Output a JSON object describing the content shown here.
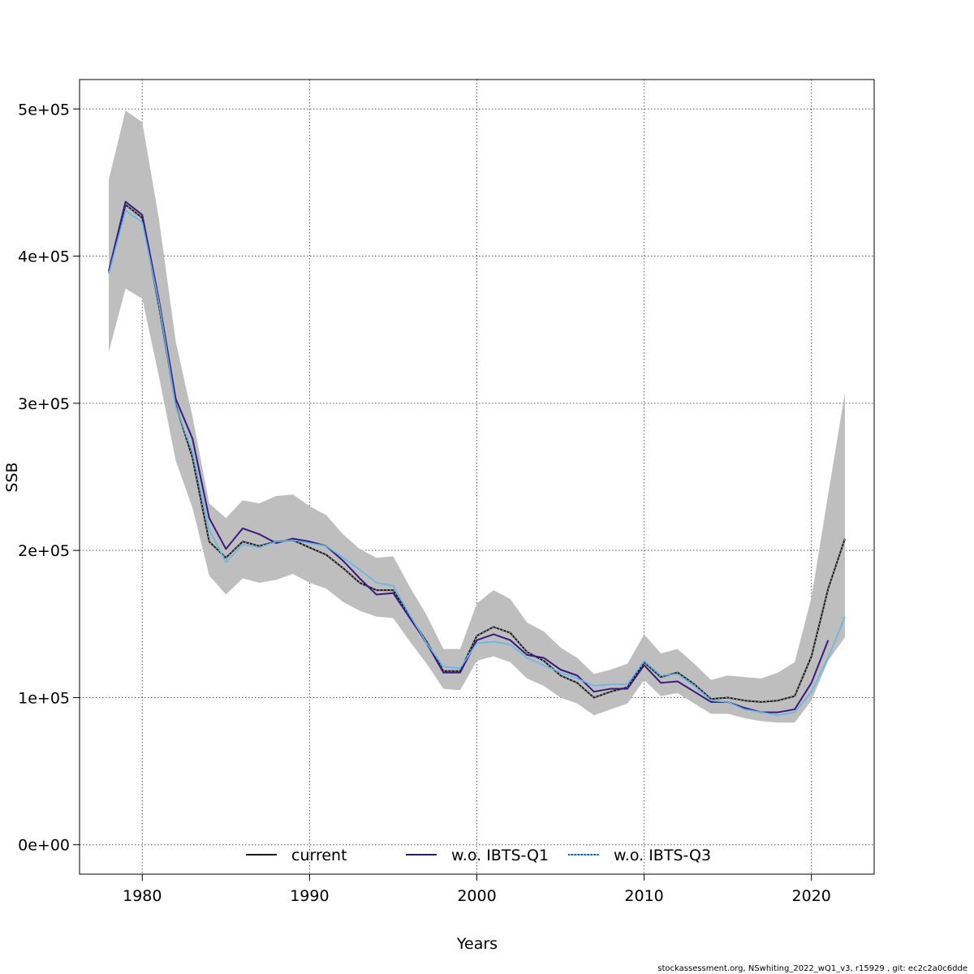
{
  "chart_data": {
    "type": "line",
    "xlabel": "Years",
    "ylabel": "SSB",
    "xlim": [
      1976.25,
      2023.75
    ],
    "ylim": [
      -20000,
      520000
    ],
    "x_ticks": [
      1980,
      1990,
      2000,
      2010,
      2020
    ],
    "x_tick_labels": [
      "1980",
      "1990",
      "2000",
      "2010",
      "2020"
    ],
    "y_ticks": [
      0,
      100000,
      200000,
      300000,
      400000,
      500000
    ],
    "y_tick_labels": [
      "0e+00",
      "1e+05",
      "2e+05",
      "3e+05",
      "4e+05",
      "5e+05"
    ],
    "grid": true,
    "legend_position": "bottom",
    "band_color": "#bebebe",
    "confidence_band": {
      "x": [
        1978,
        1979,
        1980,
        1981,
        1982,
        1983,
        1984,
        1985,
        1986,
        1987,
        1988,
        1989,
        1990,
        1991,
        1992,
        1993,
        1994,
        1995,
        1996,
        1997,
        1998,
        1999,
        2000,
        2001,
        2002,
        2003,
        2004,
        2005,
        2006,
        2007,
        2008,
        2009,
        2010,
        2011,
        2012,
        2013,
        2014,
        2015,
        2016,
        2017,
        2018,
        2019,
        2020,
        2021,
        2022
      ],
      "lower": [
        335000,
        378000,
        371000,
        318000,
        261000,
        229000,
        183000,
        170000,
        181000,
        178000,
        180000,
        184000,
        178000,
        174000,
        165000,
        159000,
        155000,
        154000,
        138000,
        123000,
        106000,
        105000,
        125000,
        128000,
        124000,
        113000,
        108000,
        100000,
        96000,
        88000,
        92000,
        96000,
        112000,
        101000,
        103000,
        96000,
        89000,
        89000,
        86000,
        84000,
        83000,
        83000,
        98000,
        125000,
        141000
      ],
      "upper": [
        452000,
        499000,
        491000,
        425000,
        342000,
        291000,
        232000,
        222000,
        234000,
        232000,
        237000,
        238000,
        230000,
        224000,
        211000,
        201000,
        195000,
        196000,
        175000,
        156000,
        133000,
        133000,
        164000,
        173000,
        167000,
        151000,
        145000,
        134000,
        127000,
        116000,
        119000,
        123000,
        143000,
        130000,
        133000,
        123000,
        112000,
        115000,
        114000,
        113000,
        117000,
        124000,
        168000,
        238000,
        307000
      ]
    },
    "series": [
      {
        "name": "current",
        "color": "#1a1a1a",
        "style": "solid",
        "x": [
          1978,
          1979,
          1980,
          1981,
          1982,
          1983,
          1984,
          1985,
          1986,
          1987,
          1988,
          1989,
          1990,
          1991,
          1992,
          1993,
          1994,
          1995,
          1996,
          1997,
          1998,
          1999,
          2000,
          2001,
          2002,
          2003,
          2004,
          2005,
          2006,
          2007,
          2008,
          2009,
          2010,
          2011,
          2012,
          2013,
          2014,
          2015,
          2016,
          2017,
          2018,
          2019,
          2020,
          2021,
          2022
        ],
        "values": [
          389000,
          435000,
          426000,
          366000,
          299000,
          263000,
          206000,
          195000,
          206000,
          203000,
          206000,
          207000,
          202000,
          197000,
          188000,
          178000,
          173000,
          173000,
          155000,
          138000,
          118000,
          118000,
          142000,
          148000,
          144000,
          131000,
          125000,
          115000,
          110000,
          100000,
          104000,
          107000,
          124000,
          114000,
          117000,
          109000,
          99000,
          100000,
          98000,
          97000,
          98000,
          101000,
          128000,
          174000,
          208000
        ]
      },
      {
        "name": "w.o. IBTS-Q1",
        "color": "#3a1a82",
        "style": "solid",
        "x": [
          1978,
          1979,
          1980,
          1981,
          1982,
          1983,
          1984,
          1985,
          1986,
          1987,
          1988,
          1989,
          1990,
          1991,
          1992,
          1993,
          1994,
          1995,
          1996,
          1997,
          1998,
          1999,
          2000,
          2001,
          2002,
          2003,
          2004,
          2005,
          2006,
          2007,
          2008,
          2009,
          2010,
          2011,
          2012,
          2013,
          2014,
          2015,
          2016,
          2017,
          2018,
          2019,
          2020,
          2021
        ],
        "values": [
          390000,
          437000,
          428000,
          370000,
          303000,
          276000,
          222000,
          201000,
          215000,
          211000,
          205000,
          208000,
          206000,
          203000,
          193000,
          181000,
          170000,
          171000,
          154000,
          137000,
          117000,
          117000,
          139000,
          143000,
          139000,
          129000,
          127000,
          119000,
          115000,
          104000,
          106000,
          106000,
          122000,
          110000,
          111000,
          104000,
          97000,
          97000,
          93000,
          90000,
          90000,
          92000,
          110000,
          139000
        ]
      },
      {
        "name": "w.o. IBTS-Q3",
        "color": "#5fb8ec",
        "style": "solid",
        "x": [
          1978,
          1979,
          1980,
          1981,
          1982,
          1983,
          1984,
          1985,
          1986,
          1987,
          1988,
          1989,
          1990,
          1991,
          1992,
          1993,
          1994,
          1995,
          1996,
          1997,
          1998,
          1999,
          2000,
          2001,
          2002,
          2003,
          2004,
          2005,
          2006,
          2007,
          2008,
          2009,
          2010,
          2011,
          2012,
          2013,
          2014,
          2015,
          2016,
          2017,
          2018,
          2019,
          2020,
          2021,
          2022
        ],
        "values": [
          388000,
          431000,
          423000,
          368000,
          298000,
          267000,
          214000,
          192000,
          204000,
          202000,
          206000,
          207000,
          205000,
          203000,
          195000,
          187000,
          178000,
          176000,
          156000,
          137000,
          121000,
          120000,
          137000,
          138000,
          136000,
          127000,
          122000,
          117000,
          113000,
          108000,
          109000,
          109000,
          125000,
          115000,
          116000,
          108000,
          98000,
          97000,
          92000,
          90000,
          88000,
          90000,
          104000,
          127000,
          155000
        ]
      }
    ]
  },
  "legend": {
    "entries": [
      {
        "label": "current",
        "line_color": "#1a1a1a",
        "dot_color": "#1a1a1a"
      },
      {
        "label": "w.o. IBTS-Q1",
        "line_color": "#3a1a82",
        "dot_color": "#1a1a1a"
      },
      {
        "label": "w.o. IBTS-Q3",
        "line_color": "#5fb8ec",
        "dot_color": "#1a1a1a"
      }
    ]
  },
  "footer": "stockassessment.org, NSwhiting_2022_wQ1_v3, r15929 , git: ec2c2a0c6dde"
}
